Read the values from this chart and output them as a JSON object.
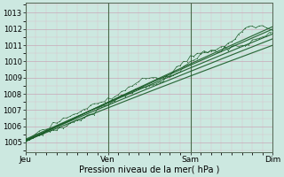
{
  "xlabel": "Pression niveau de la mer( hPa )",
  "ylim": [
    1004.4,
    1013.6
  ],
  "xlim": [
    0,
    72
  ],
  "yticks": [
    1005,
    1006,
    1007,
    1008,
    1009,
    1010,
    1011,
    1012,
    1013
  ],
  "xtick_positions": [
    0,
    24,
    48,
    72
  ],
  "xtick_labels": [
    "Jeu",
    "Ven",
    "Sam",
    "Dim"
  ],
  "bg_color": "#cce8e0",
  "grid_color_major": "#c8a8b8",
  "grid_color_minor": "#dcc0cc",
  "line_color": "#1a5c28",
  "vline_color": "#446644"
}
